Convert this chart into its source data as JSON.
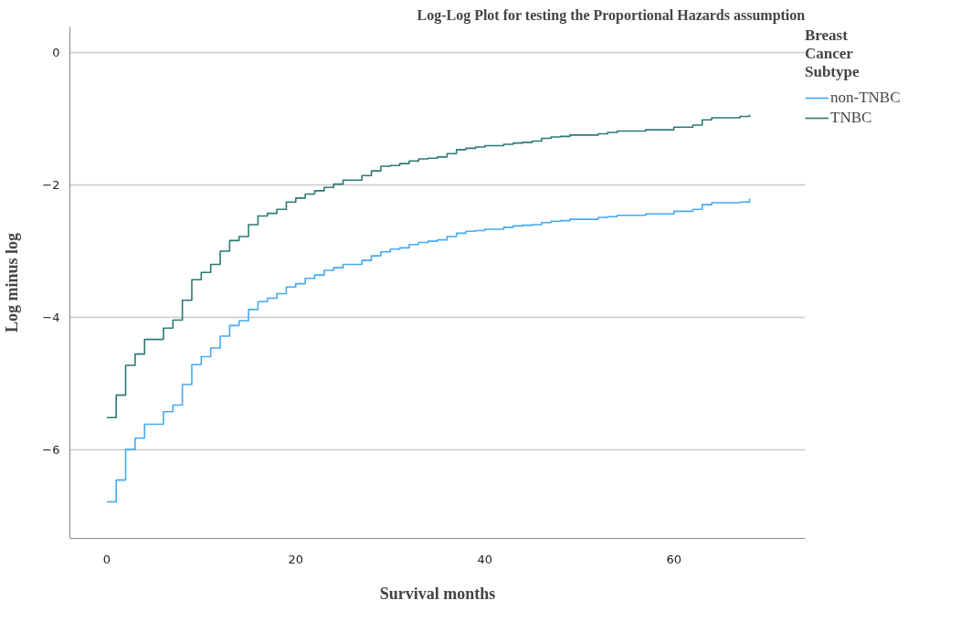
{
  "chart_data": {
    "type": "step",
    "title": "Log-Log Plot for testing the Proportional Hazards assumption",
    "xlabel": "Survival months",
    "ylabel": "Log minus log",
    "legend_title": "Breast Cancer Subtype",
    "x": [
      0,
      1,
      2,
      3,
      4,
      6,
      7,
      8,
      9,
      10,
      11,
      12,
      13,
      14,
      15,
      16,
      17,
      18,
      19,
      20,
      21,
      22,
      23,
      24,
      25,
      27,
      28,
      29,
      30,
      31,
      32,
      33,
      34,
      35,
      36,
      37,
      38,
      39,
      40,
      42,
      43,
      44,
      45,
      46,
      47,
      48,
      49,
      52,
      53,
      54,
      57,
      60,
      62,
      63,
      64,
      67,
      68
    ],
    "series": [
      {
        "name": "non-TNBC",
        "color": "#45a9f2",
        "values": [
          -6.78,
          -6.45,
          -5.99,
          -5.82,
          -5.61,
          -5.42,
          -5.32,
          -5.01,
          -4.71,
          -4.59,
          -4.46,
          -4.28,
          -4.12,
          -4.05,
          -3.88,
          -3.76,
          -3.71,
          -3.64,
          -3.54,
          -3.49,
          -3.41,
          -3.36,
          -3.29,
          -3.25,
          -3.2,
          -3.14,
          -3.07,
          -3.01,
          -2.97,
          -2.95,
          -2.9,
          -2.87,
          -2.85,
          -2.83,
          -2.78,
          -2.73,
          -2.7,
          -2.69,
          -2.67,
          -2.64,
          -2.62,
          -2.61,
          -2.6,
          -2.57,
          -2.55,
          -2.54,
          -2.52,
          -2.49,
          -2.48,
          -2.46,
          -2.44,
          -2.4,
          -2.37,
          -2.3,
          -2.27,
          -2.26,
          -2.21
        ]
      },
      {
        "name": "TNBC",
        "color": "#2b7a73",
        "values": [
          -5.51,
          -5.17,
          -4.72,
          -4.55,
          -4.33,
          -4.16,
          -4.04,
          -3.74,
          -3.43,
          -3.32,
          -3.2,
          -3.0,
          -2.84,
          -2.78,
          -2.6,
          -2.47,
          -2.43,
          -2.37,
          -2.26,
          -2.2,
          -2.14,
          -2.09,
          -2.04,
          -1.99,
          -1.93,
          -1.86,
          -1.79,
          -1.72,
          -1.71,
          -1.68,
          -1.64,
          -1.61,
          -1.6,
          -1.58,
          -1.53,
          -1.47,
          -1.45,
          -1.43,
          -1.41,
          -1.39,
          -1.37,
          -1.36,
          -1.34,
          -1.3,
          -1.28,
          -1.27,
          -1.25,
          -1.23,
          -1.21,
          -1.19,
          -1.17,
          -1.13,
          -1.1,
          -1.02,
          -0.99,
          -0.97,
          -0.94
        ]
      }
    ],
    "xlim": [
      -3.9,
      73.9
    ],
    "xticks": [
      0,
      20,
      40,
      60
    ],
    "ylim": [
      -7.33,
      0.38
    ],
    "yticks": [
      0,
      -2,
      -4,
      -6
    ],
    "grid": "y",
    "legend": "right",
    "line_style": "solid",
    "marker": "none"
  }
}
